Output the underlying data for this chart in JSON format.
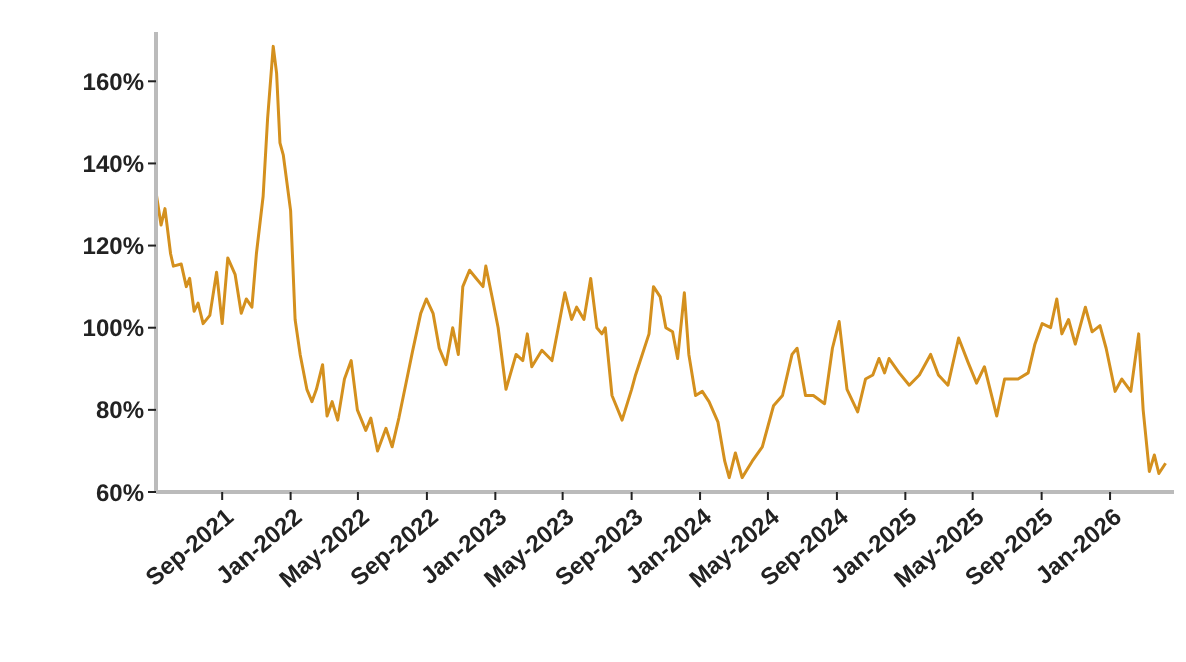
{
  "chart_data": {
    "type": "line",
    "color": "#d4901e",
    "grid": false,
    "x": [
      "2021-05-06",
      "2021-05-15",
      "2021-05-22",
      "2021-06-01",
      "2021-06-06",
      "2021-06-20",
      "2021-06-29",
      "2021-07-05",
      "2021-07-13",
      "2021-07-20",
      "2021-07-29",
      "2021-08-10",
      "2021-08-22",
      "2021-09-01",
      "2021-09-11",
      "2021-09-24",
      "2021-10-05",
      "2021-10-14",
      "2021-10-24",
      "2021-11-01",
      "2021-11-13",
      "2021-11-21",
      "2021-12-01",
      "2021-12-07",
      "2021-12-13",
      "2021-12-19",
      "2022-01-01",
      "2022-01-09",
      "2022-01-18",
      "2022-01-30",
      "2022-02-08",
      "2022-02-16",
      "2022-02-27",
      "2022-03-07",
      "2022-03-16",
      "2022-03-26",
      "2022-04-07",
      "2022-04-19",
      "2022-04-30",
      "2022-05-15",
      "2022-05-24",
      "2022-06-05",
      "2022-06-20",
      "2022-07-01",
      "2022-07-13",
      "2022-07-25",
      "2022-08-06",
      "2022-08-21",
      "2022-08-31",
      "2022-09-12",
      "2022-09-23",
      "2022-10-05",
      "2022-10-17",
      "2022-10-27",
      "2022-11-04",
      "2022-11-16",
      "2022-11-28",
      "2022-12-10",
      "2022-12-15",
      "2022-12-27",
      "2023-01-06",
      "2023-01-20",
      "2023-02-07",
      "2023-02-19",
      "2023-02-27",
      "2023-03-07",
      "2023-03-25",
      "2023-04-12",
      "2023-04-26",
      "2023-05-05",
      "2023-05-17",
      "2023-05-26",
      "2023-06-08",
      "2023-06-20",
      "2023-07-01",
      "2023-07-10",
      "2023-07-16",
      "2023-07-28",
      "2023-08-15",
      "2023-09-01",
      "2023-09-08",
      "2023-09-20",
      "2023-10-02",
      "2023-10-10",
      "2023-10-22",
      "2023-11-01",
      "2023-11-13",
      "2023-11-22",
      "2023-12-04",
      "2023-12-12",
      "2023-12-24",
      "2024-01-05",
      "2024-01-17",
      "2024-02-02",
      "2024-02-14",
      "2024-02-22",
      "2024-03-04",
      "2024-03-16",
      "2024-04-03",
      "2024-04-21",
      "2024-05-11",
      "2024-05-27",
      "2024-06-13",
      "2024-06-22",
      "2024-07-07",
      "2024-07-21",
      "2024-08-10",
      "2024-08-24",
      "2024-09-05",
      "2024-09-19",
      "2024-10-08",
      "2024-10-22",
      "2024-11-04",
      "2024-11-15",
      "2024-11-25",
      "2024-12-03",
      "2024-12-21",
      "2025-01-08",
      "2025-01-26",
      "2025-02-15",
      "2025-03-01",
      "2025-03-18",
      "2025-04-06",
      "2025-04-23",
      "2025-05-08",
      "2025-05-22",
      "2025-06-13",
      "2025-06-27",
      "2025-07-21",
      "2025-08-08",
      "2025-08-20",
      "2025-09-02",
      "2025-09-17",
      "2025-09-28",
      "2025-10-07",
      "2025-10-19",
      "2025-10-31",
      "2025-11-18",
      "2025-11-30",
      "2025-12-14",
      "2025-12-25",
      "2026-01-10",
      "2026-01-22",
      "2026-02-07",
      "2026-02-21",
      "2026-03-01",
      "2026-03-12",
      "2026-03-21",
      "2026-03-29",
      "2026-04-10"
    ],
    "values": [
      133,
      125,
      129,
      118,
      115,
      115.5,
      110,
      112,
      104,
      106,
      101,
      103,
      113.5,
      101,
      117,
      113,
      103.5,
      107,
      105,
      118,
      132,
      151,
      168.5,
      162,
      145,
      142,
      128.5,
      102,
      93.5,
      85,
      82,
      85,
      91,
      78.5,
      82,
      77.5,
      87.5,
      92,
      80,
      75,
      78,
      70,
      75.5,
      71,
      78,
      86,
      94,
      103.5,
      107,
      103.5,
      95,
      91,
      100,
      93.5,
      110,
      114,
      112,
      110,
      115,
      107,
      100,
      85,
      93.5,
      92,
      98.5,
      90.5,
      94.5,
      92,
      102,
      108.5,
      102,
      105,
      102,
      112,
      100,
      98.5,
      100,
      83.5,
      77.5,
      85,
      88.5,
      93.5,
      98.5,
      110,
      107.5,
      100,
      99,
      92.5,
      108.5,
      93.5,
      83.5,
      84.5,
      82,
      77,
      67.5,
      63.5,
      69.5,
      63.5,
      67.5,
      71,
      81,
      83.5,
      93.5,
      95,
      83.5,
      83.5,
      81.5,
      95,
      101.5,
      85,
      79.5,
      87.5,
      88.5,
      92.5,
      89,
      92.5,
      89,
      86,
      88.5,
      93.5,
      88.5,
      86,
      97.5,
      91.5,
      86.5,
      90.5,
      78.5,
      87.5,
      87.5,
      89,
      96,
      101,
      100,
      107,
      98.5,
      102,
      96,
      105,
      99,
      100.5,
      95,
      84.5,
      87.5,
      84.5,
      98.5,
      80,
      65,
      69,
      64.5,
      67
    ],
    "xlim": [
      "2021-05-06",
      "2026-04-25"
    ],
    "xticks": [
      {
        "value": "2021-09-01",
        "label": "Sep-2021"
      },
      {
        "value": "2022-01-01",
        "label": "Jan-2022"
      },
      {
        "value": "2022-05-01",
        "label": "May-2022"
      },
      {
        "value": "2022-09-01",
        "label": "Sep-2022"
      },
      {
        "value": "2023-01-01",
        "label": "Jan-2023"
      },
      {
        "value": "2023-05-01",
        "label": "May-2023"
      },
      {
        "value": "2023-09-01",
        "label": "Sep-2023"
      },
      {
        "value": "2024-01-01",
        "label": "Jan-2024"
      },
      {
        "value": "2024-05-01",
        "label": "May-2024"
      },
      {
        "value": "2024-09-01",
        "label": "Sep-2024"
      },
      {
        "value": "2025-01-01",
        "label": "Jan-2025"
      },
      {
        "value": "2025-05-01",
        "label": "May-2025"
      },
      {
        "value": "2025-09-01",
        "label": "Sep-2025"
      },
      {
        "value": "2026-01-01",
        "label": "Jan-2026"
      }
    ],
    "ylim": [
      60,
      172
    ],
    "yticks": [
      {
        "value": 60,
        "label": "60%"
      },
      {
        "value": 80,
        "label": "80%"
      },
      {
        "value": 100,
        "label": "100%"
      },
      {
        "value": 120,
        "label": "120%"
      },
      {
        "value": 140,
        "label": "140%"
      },
      {
        "value": 160,
        "label": "160%"
      }
    ]
  }
}
